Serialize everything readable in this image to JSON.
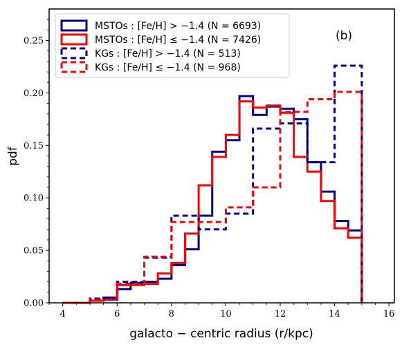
{
  "chart_data": {
    "type": "histogram-step",
    "panel_label": "(b)",
    "xlabel": "galacto − centric radius (r/kpc)",
    "ylabel": "pdf",
    "xlim": [
      3.5,
      16.2
    ],
    "ylim": [
      0.0,
      0.28
    ],
    "xticks": [
      4,
      6,
      8,
      10,
      12,
      14,
      16
    ],
    "xtick_labels": [
      "4",
      "6",
      "8",
      "10",
      "12",
      "14",
      "16"
    ],
    "yticks": [
      0.0,
      0.05,
      0.1,
      0.15,
      0.2,
      0.25
    ],
    "ytick_labels": [
      "0.00",
      "0.05",
      "0.10",
      "0.15",
      "0.20",
      "0.25"
    ],
    "legend_position": "top-left",
    "colors": {
      "blue": "#00008b",
      "red": "#ff0000"
    },
    "series": [
      {
        "name": "MSTOs :  [Fe/H] > −1.4 (N = 6693)",
        "color": "#00008b",
        "dashed": false,
        "bin_edges": [
          4,
          4.5,
          5,
          5.5,
          6,
          6.5,
          7,
          7.5,
          8,
          8.5,
          9,
          9.5,
          10,
          10.5,
          11,
          11.5,
          12,
          12.5,
          13,
          13.5,
          14,
          14.5,
          15
        ],
        "values": [
          0.0,
          0.0,
          0.002,
          0.005,
          0.013,
          0.019,
          0.02,
          0.023,
          0.036,
          0.051,
          0.083,
          0.144,
          0.155,
          0.197,
          0.179,
          0.187,
          0.185,
          0.175,
          0.134,
          0.106,
          0.078,
          0.069
        ]
      },
      {
        "name": "MSTOs :  [Fe/H] ≤ −1.4 (N = 7426)",
        "color": "#ff0000",
        "dashed": false,
        "bin_edges": [
          4,
          4.5,
          5,
          5.5,
          6,
          6.5,
          7,
          7.5,
          8,
          8.5,
          9,
          9.5,
          10,
          10.5,
          11,
          11.5,
          12,
          12.5,
          13,
          13.5,
          14,
          14.5,
          15
        ],
        "values": [
          0.0,
          0.0,
          0.002,
          0.003,
          0.017,
          0.017,
          0.018,
          0.028,
          0.038,
          0.066,
          0.112,
          0.139,
          0.16,
          0.192,
          0.186,
          0.188,
          0.181,
          0.139,
          0.125,
          0.097,
          0.071,
          0.062
        ]
      },
      {
        "name": "KGs :  [Fe/H] > −1.4 (N = 513)",
        "color": "#00008b",
        "dashed": true,
        "bin_edges": [
          4,
          5,
          6,
          7,
          8,
          9,
          10,
          11,
          12,
          13,
          14,
          15
        ],
        "values": [
          0.0,
          0.004,
          0.02,
          0.043,
          0.083,
          0.07,
          0.085,
          0.166,
          0.171,
          0.134,
          0.226
        ]
      },
      {
        "name": "KGs :  [Fe/H] ≤ −1.4 (N = 968)",
        "color": "#ff0000",
        "dashed": true,
        "bin_edges": [
          4,
          5,
          6,
          7,
          8,
          9,
          10,
          11,
          12,
          13,
          14,
          15
        ],
        "values": [
          0.0,
          0.003,
          0.018,
          0.044,
          0.077,
          0.077,
          0.091,
          0.11,
          0.182,
          0.194,
          0.201
        ]
      }
    ]
  }
}
